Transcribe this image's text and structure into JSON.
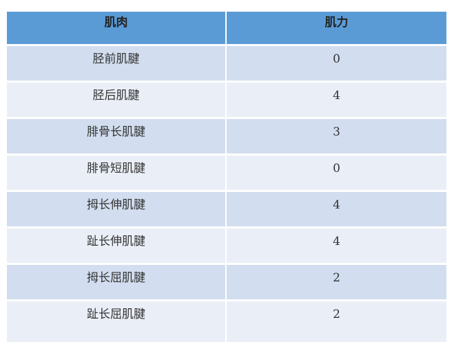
{
  "table": {
    "headers": [
      "肌肉",
      "肌力"
    ],
    "rows": [
      [
        "胫前肌腱",
        "0"
      ],
      [
        "胫后肌腱",
        "4"
      ],
      [
        "腓骨长肌腱",
        "3"
      ],
      [
        "腓骨短肌腱",
        "0"
      ],
      [
        "拇长伸肌腱",
        "4"
      ],
      [
        "趾长伸肌腱",
        "4"
      ],
      [
        "拇长屈肌腱",
        "2"
      ],
      [
        "趾长屈肌腱",
        "2"
      ]
    ]
  },
  "colors": {
    "header": "#5b9bd5",
    "row_odd": "#d2deef",
    "row_even": "#eaeff7"
  }
}
